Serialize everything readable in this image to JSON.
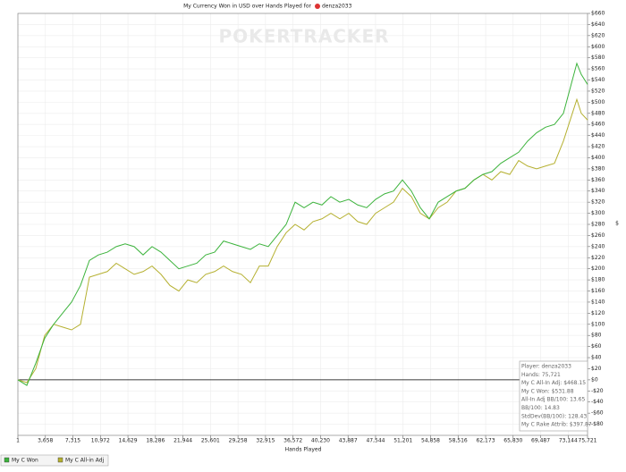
{
  "chart_data": {
    "type": "line",
    "title": "My Currency Won in USD over Hands Played for",
    "player": "denza2033",
    "watermark": "POKERTRACKER",
    "xlabel": "Hands Played",
    "ylabel": "$",
    "grid": true,
    "x": [
      1,
      1190,
      2378,
      3567,
      4756,
      5944,
      7133,
      8322,
      9511,
      10699,
      11888,
      13077,
      14265,
      15454,
      16643,
      17831,
      19020,
      20209,
      21397,
      22586,
      23775,
      24964,
      26152,
      27341,
      28530,
      29718,
      30907,
      32096,
      33284,
      34473,
      35662,
      36851,
      38039,
      39228,
      40417,
      41605,
      42794,
      43983,
      45171,
      46360,
      47549,
      48738,
      49926,
      51115,
      52304,
      53492,
      54681,
      55870,
      57058,
      58247,
      59436,
      60625,
      61813,
      63002,
      64191,
      65379,
      66568,
      67757,
      68945,
      70134,
      71323,
      72512,
      73700,
      74295,
      74889,
      75721
    ],
    "series": [
      {
        "name": "My C Won",
        "color": "#3cb33c",
        "values": [
          0,
          -10,
          30,
          75,
          100,
          120,
          140,
          170,
          215,
          225,
          230,
          240,
          245,
          240,
          225,
          240,
          230,
          215,
          200,
          205,
          210,
          225,
          230,
          250,
          245,
          240,
          235,
          245,
          240,
          260,
          280,
          320,
          310,
          320,
          315,
          330,
          320,
          325,
          315,
          310,
          325,
          335,
          340,
          360,
          340,
          310,
          290,
          320,
          330,
          340,
          345,
          360,
          370,
          375,
          390,
          400,
          410,
          430,
          445,
          455,
          460,
          480,
          540,
          570,
          550,
          532
        ]
      },
      {
        "name": "My C All-in Adj",
        "color": "#b5b030",
        "values": [
          0,
          -5,
          20,
          80,
          100,
          95,
          90,
          100,
          185,
          190,
          195,
          210,
          200,
          190,
          195,
          205,
          190,
          170,
          160,
          180,
          175,
          190,
          195,
          205,
          195,
          190,
          175,
          205,
          205,
          240,
          265,
          280,
          270,
          285,
          290,
          300,
          290,
          300,
          285,
          280,
          300,
          310,
          320,
          345,
          330,
          300,
          290,
          310,
          320,
          340,
          345,
          360,
          370,
          360,
          375,
          370,
          395,
          385,
          380,
          385,
          390,
          430,
          480,
          505,
          480,
          468
        ]
      }
    ],
    "xlim": [
      1,
      75721
    ],
    "xticks": [
      1,
      {
        "value": 3658,
        "label": "3,658"
      },
      {
        "value": 7315,
        "label": "7,315"
      },
      {
        "value": 10972,
        "label": "10,972"
      },
      {
        "value": 14629,
        "label": "14,629"
      },
      {
        "value": 18286,
        "label": "18,286"
      },
      {
        "value": 21944,
        "label": "21,944"
      },
      {
        "value": 25601,
        "label": "25,601"
      },
      {
        "value": 29258,
        "label": "29,258"
      },
      {
        "value": 32915,
        "label": "32,915"
      },
      {
        "value": 36572,
        "label": "36,572"
      },
      {
        "value": 40230,
        "label": "40,230"
      },
      {
        "value": 43887,
        "label": "43,887"
      },
      {
        "value": 47544,
        "label": "47,544"
      },
      {
        "value": 51201,
        "label": "51,201"
      },
      {
        "value": 54858,
        "label": "54,858"
      },
      {
        "value": 58516,
        "label": "58,516"
      },
      {
        "value": 62173,
        "label": "62,173"
      },
      {
        "value": 65830,
        "label": "65,830"
      },
      {
        "value": 69487,
        "label": "69,487"
      },
      {
        "value": 73144,
        "label": "73,144"
      },
      {
        "value": 75721,
        "label": "75,721"
      }
    ],
    "ylim": [
      -100,
      660
    ],
    "yticks": [
      {
        "value": -80,
        "label": "-$80"
      },
      {
        "value": -60,
        "label": "-$60"
      },
      {
        "value": -40,
        "label": "-$40"
      },
      {
        "value": -20,
        "label": "-$20"
      },
      {
        "value": 0,
        "label": "$0"
      },
      {
        "value": 20,
        "label": "$20"
      },
      {
        "value": 40,
        "label": "$40"
      },
      {
        "value": 60,
        "label": "$60"
      },
      {
        "value": 80,
        "label": "$80"
      },
      {
        "value": 100,
        "label": "$100"
      },
      {
        "value": 120,
        "label": "$120"
      },
      {
        "value": 140,
        "label": "$140"
      },
      {
        "value": 160,
        "label": "$160"
      },
      {
        "value": 180,
        "label": "$180"
      },
      {
        "value": 200,
        "label": "$200"
      },
      {
        "value": 220,
        "label": "$220"
      },
      {
        "value": 240,
        "label": "$240"
      },
      {
        "value": 260,
        "label": "$260"
      },
      {
        "value": 280,
        "label": "$280"
      },
      {
        "value": 300,
        "label": "$300"
      },
      {
        "value": 320,
        "label": "$320"
      },
      {
        "value": 340,
        "label": "$340"
      },
      {
        "value": 360,
        "label": "$360"
      },
      {
        "value": 380,
        "label": "$380"
      },
      {
        "value": 400,
        "label": "$400"
      },
      {
        "value": 420,
        "label": "$420"
      },
      {
        "value": 440,
        "label": "$440"
      },
      {
        "value": 460,
        "label": "$460"
      },
      {
        "value": 480,
        "label": "$480"
      },
      {
        "value": 500,
        "label": "$500"
      },
      {
        "value": 520,
        "label": "$520"
      },
      {
        "value": 540,
        "label": "$540"
      },
      {
        "value": 560,
        "label": "$560"
      },
      {
        "value": 580,
        "label": "$580"
      },
      {
        "value": 600,
        "label": "$600"
      },
      {
        "value": 620,
        "label": "$620"
      },
      {
        "value": 640,
        "label": "$640"
      },
      {
        "value": 660,
        "label": "$660"
      }
    ],
    "info": [
      "Player: denza2033",
      "Hands: 75,721",
      "My C All-In Adj: $468.15",
      "My C Won: $531.88",
      "All-In Adj BB/100: 13.65",
      "BB/100: 14.83",
      "StdDev(BB/100): 128.43",
      "My C Rake Attrib: $397.87"
    ]
  }
}
